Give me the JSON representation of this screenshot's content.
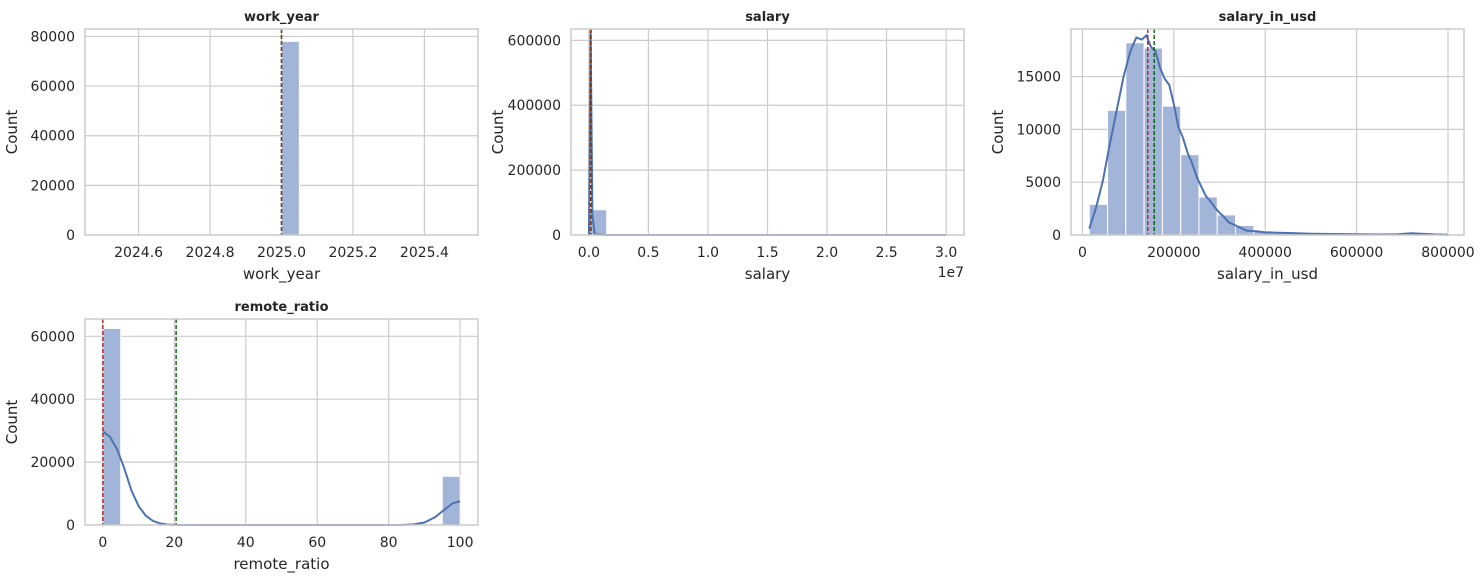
{
  "chart_data": [
    {
      "type": "bar",
      "title": "work_year",
      "xlabel": "work_year",
      "ylabel": "Count",
      "xlim": [
        2024.45,
        2025.55
      ],
      "ylim": [
        0,
        83000
      ],
      "x_ticks": [
        2024.6,
        2024.8,
        2025.0,
        2025.2,
        2025.4
      ],
      "x_tick_labels": [
        "2024.6",
        "2024.8",
        "2025.0",
        "2025.2",
        "2025.4"
      ],
      "y_ticks": [
        0,
        20000,
        40000,
        60000,
        80000
      ],
      "y_tick_labels": [
        "0",
        "20000",
        "40000",
        "60000",
        "80000"
      ],
      "exponent_label": "",
      "bins": [
        [
          2025.0,
          2025.05,
          78000
        ]
      ],
      "kde": [],
      "mean": 2025.0,
      "median": 2025.0,
      "mean_color": "#b22222",
      "median_color": "#006400",
      "bar_color": "#a2b4d8",
      "kde_color": "#4c72b0",
      "grid": true
    },
    {
      "type": "bar",
      "title": "salary",
      "xlabel": "salary",
      "ylabel": "Count",
      "xlim": [
        -1500000,
        31500000
      ],
      "ylim": [
        0,
        635000
      ],
      "x_ticks": [
        0,
        5000000,
        10000000,
        15000000,
        20000000,
        25000000,
        30000000
      ],
      "x_tick_labels": [
        "0.0",
        "0.5",
        "1.0",
        "1.5",
        "2.0",
        "2.5",
        "3.0"
      ],
      "y_ticks": [
        0,
        200000,
        400000,
        600000
      ],
      "y_tick_labels": [
        "0",
        "200000",
        "400000",
        "600000"
      ],
      "exponent_label": "1e7",
      "bins": [
        [
          0,
          1500000,
          78000
        ]
      ],
      "kde": [
        [
          0,
          0
        ],
        [
          150000,
          630000
        ],
        [
          300000,
          60000
        ],
        [
          500000,
          2000
        ],
        [
          1500000,
          0
        ],
        [
          30000000,
          0
        ]
      ],
      "mean": 180000,
      "median": 150000,
      "mean_color": "#b22222",
      "median_color": "#006400",
      "bar_color": "#a2b4d8",
      "kde_color": "#4c72b0",
      "grid": true
    },
    {
      "type": "bar",
      "title": "salary_in_usd",
      "xlabel": "salary_in_usd",
      "ylabel": "Count",
      "xlim": [
        -25000,
        835000
      ],
      "ylim": [
        0,
        19500
      ],
      "x_ticks": [
        0,
        200000,
        400000,
        600000,
        800000
      ],
      "x_tick_labels": [
        "0",
        "200000",
        "400000",
        "600000",
        "800000"
      ],
      "y_ticks": [
        0,
        5000,
        10000,
        15000
      ],
      "y_tick_labels": [
        "0",
        "5000",
        "10000",
        "15000"
      ],
      "exponent_label": "",
      "bins": [
        [
          15000,
          55000,
          2900
        ],
        [
          55000,
          95000,
          11800
        ],
        [
          95000,
          135000,
          18200
        ],
        [
          135000,
          175000,
          17700
        ],
        [
          175000,
          215000,
          12200
        ],
        [
          215000,
          255000,
          7600
        ],
        [
          255000,
          295000,
          3600
        ],
        [
          295000,
          335000,
          1900
        ],
        [
          335000,
          375000,
          900
        ],
        [
          375000,
          415000,
          400
        ],
        [
          415000,
          455000,
          250
        ],
        [
          455000,
          495000,
          200
        ],
        [
          495000,
          535000,
          150
        ],
        [
          535000,
          575000,
          120
        ],
        [
          575000,
          615000,
          100
        ],
        [
          615000,
          655000,
          80
        ],
        [
          655000,
          695000,
          60
        ],
        [
          695000,
          735000,
          180
        ],
        [
          735000,
          775000,
          80
        ],
        [
          775000,
          800000,
          30
        ]
      ],
      "kde": [
        [
          15000,
          600
        ],
        [
          30000,
          2600
        ],
        [
          45000,
          5200
        ],
        [
          60000,
          8600
        ],
        [
          75000,
          11800
        ],
        [
          90000,
          15000
        ],
        [
          105000,
          17400
        ],
        [
          118000,
          18700
        ],
        [
          130000,
          18500
        ],
        [
          140000,
          18900
        ],
        [
          150000,
          17800
        ],
        [
          160000,
          17400
        ],
        [
          170000,
          15800
        ],
        [
          180000,
          14800
        ],
        [
          190000,
          14200
        ],
        [
          200000,
          12400
        ],
        [
          210000,
          10200
        ],
        [
          220000,
          9200
        ],
        [
          230000,
          7800
        ],
        [
          240000,
          6800
        ],
        [
          250000,
          5500
        ],
        [
          260000,
          4600
        ],
        [
          270000,
          3700
        ],
        [
          280000,
          3200
        ],
        [
          290000,
          2600
        ],
        [
          300000,
          2100
        ],
        [
          310000,
          1700
        ],
        [
          320000,
          1200
        ],
        [
          330000,
          1000
        ],
        [
          340000,
          800
        ],
        [
          350000,
          600
        ],
        [
          360000,
          400
        ],
        [
          380000,
          350
        ],
        [
          400000,
          250
        ],
        [
          430000,
          220
        ],
        [
          460000,
          180
        ],
        [
          500000,
          120
        ],
        [
          550000,
          90
        ],
        [
          600000,
          70
        ],
        [
          650000,
          50
        ],
        [
          690000,
          70
        ],
        [
          720000,
          160
        ],
        [
          740000,
          120
        ],
        [
          770000,
          60
        ],
        [
          800000,
          30
        ]
      ],
      "mean": 157000,
      "median": 143000,
      "mean_color": "#006400",
      "median_color": "#b22222",
      "bar_color": "#a2b4d8",
      "kde_color": "#4c72b0",
      "grid": true
    },
    {
      "type": "bar",
      "title": "remote_ratio",
      "xlabel": "remote_ratio",
      "ylabel": "Count",
      "xlim": [
        -5,
        105
      ],
      "ylim": [
        0,
        65500
      ],
      "x_ticks": [
        0,
        20,
        40,
        60,
        80,
        100
      ],
      "x_tick_labels": [
        "0",
        "20",
        "40",
        "60",
        "80",
        "100"
      ],
      "y_ticks": [
        0,
        20000,
        40000,
        60000
      ],
      "y_tick_labels": [
        "0",
        "20000",
        "40000",
        "60000"
      ],
      "exponent_label": "",
      "bins": [
        [
          0,
          5,
          62500
        ],
        [
          95,
          100,
          15500
        ]
      ],
      "kde": [
        [
          0,
          29800
        ],
        [
          2,
          28000
        ],
        [
          4,
          24000
        ],
        [
          6,
          18000
        ],
        [
          8,
          11000
        ],
        [
          10,
          6000
        ],
        [
          12,
          3000
        ],
        [
          14,
          1300
        ],
        [
          16,
          500
        ],
        [
          18,
          150
        ],
        [
          20,
          30
        ],
        [
          24,
          0
        ],
        [
          80,
          0
        ],
        [
          84,
          30
        ],
        [
          87,
          200
        ],
        [
          90,
          800
        ],
        [
          93,
          2500
        ],
        [
          96,
          5200
        ],
        [
          98,
          7000
        ],
        [
          100,
          7500
        ]
      ],
      "mean": 20.5,
      "median": 0,
      "mean_color": "#006400",
      "median_color": "#b22222",
      "bar_color": "#a2b4d8",
      "kde_color": "#4c72b0",
      "grid": true
    }
  ]
}
